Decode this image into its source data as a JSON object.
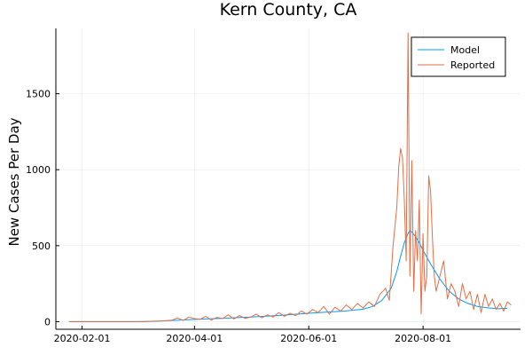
{
  "chart_data": {
    "type": "line",
    "title": "Kern County, CA",
    "xlabel": "",
    "ylabel": "New Cases Per Day",
    "x_axis_type": "date",
    "xlim": [
      "2020-01-18",
      "2020-09-22"
    ],
    "ylim": [
      -50,
      1930
    ],
    "xticks": [
      "2020-02-01",
      "2020-04-01",
      "2020-06-01",
      "2020-08-01"
    ],
    "yticks": [
      0,
      500,
      1000,
      1500
    ],
    "grid": true,
    "legend_position": "top-right",
    "colors": {
      "Model": "#009AFA",
      "Reported": "#E26F46"
    },
    "series": [
      {
        "name": "Model",
        "x": [
          "2020-01-25",
          "2020-03-01",
          "2020-03-10",
          "2020-03-20",
          "2020-04-01",
          "2020-04-15",
          "2020-05-01",
          "2020-05-15",
          "2020-06-01",
          "2020-06-10",
          "2020-06-20",
          "2020-06-30",
          "2020-07-05",
          "2020-07-10",
          "2020-07-15",
          "2020-07-18",
          "2020-07-20",
          "2020-07-22",
          "2020-07-24",
          "2020-07-25",
          "2020-07-26",
          "2020-07-28",
          "2020-07-30",
          "2020-08-01",
          "2020-08-05",
          "2020-08-10",
          "2020-08-15",
          "2020-08-20",
          "2020-08-25",
          "2020-08-30",
          "2020-09-05",
          "2020-09-10",
          "2020-09-15"
        ],
        "y": [
          0,
          0,
          2,
          8,
          15,
          22,
          30,
          40,
          55,
          62,
          70,
          82,
          100,
          140,
          220,
          330,
          430,
          520,
          580,
          600,
          590,
          560,
          520,
          470,
          380,
          280,
          200,
          150,
          120,
          100,
          90,
          85,
          88
        ]
      },
      {
        "name": "Reported",
        "x": [
          "2020-01-25",
          "2020-03-05",
          "2020-03-10",
          "2020-03-15",
          "2020-03-20",
          "2020-03-23",
          "2020-03-26",
          "2020-03-29",
          "2020-04-01",
          "2020-04-04",
          "2020-04-07",
          "2020-04-10",
          "2020-04-13",
          "2020-04-16",
          "2020-04-19",
          "2020-04-22",
          "2020-04-25",
          "2020-04-28",
          "2020-05-01",
          "2020-05-04",
          "2020-05-07",
          "2020-05-10",
          "2020-05-13",
          "2020-05-16",
          "2020-05-19",
          "2020-05-22",
          "2020-05-25",
          "2020-05-28",
          "2020-05-31",
          "2020-06-03",
          "2020-06-06",
          "2020-06-09",
          "2020-06-12",
          "2020-06-15",
          "2020-06-18",
          "2020-06-21",
          "2020-06-24",
          "2020-06-27",
          "2020-06-30",
          "2020-07-03",
          "2020-07-06",
          "2020-07-09",
          "2020-07-12",
          "2020-07-14",
          "2020-07-16",
          "2020-07-18",
          "2020-07-19",
          "2020-07-20",
          "2020-07-21",
          "2020-07-22",
          "2020-07-23",
          "2020-07-24",
          "2020-07-25",
          "2020-07-26",
          "2020-07-27",
          "2020-07-28",
          "2020-07-29",
          "2020-07-30",
          "2020-07-31",
          "2020-08-01",
          "2020-08-02",
          "2020-08-03",
          "2020-08-04",
          "2020-08-05",
          "2020-08-06",
          "2020-08-07",
          "2020-08-08",
          "2020-08-09",
          "2020-08-10",
          "2020-08-12",
          "2020-08-14",
          "2020-08-16",
          "2020-08-18",
          "2020-08-20",
          "2020-08-22",
          "2020-08-24",
          "2020-08-26",
          "2020-08-28",
          "2020-08-30",
          "2020-09-01",
          "2020-09-03",
          "2020-09-05",
          "2020-09-07",
          "2020-09-09",
          "2020-09-11",
          "2020-09-13",
          "2020-09-15",
          "2020-09-17"
        ],
        "y": [
          0,
          0,
          3,
          5,
          10,
          25,
          8,
          30,
          20,
          15,
          35,
          10,
          28,
          20,
          45,
          18,
          40,
          22,
          30,
          50,
          25,
          45,
          30,
          60,
          35,
          55,
          40,
          70,
          50,
          80,
          60,
          100,
          50,
          95,
          70,
          110,
          80,
          120,
          90,
          130,
          100,
          180,
          220,
          140,
          500,
          750,
          1020,
          1140,
          1080,
          800,
          400,
          1900,
          300,
          1060,
          200,
          600,
          400,
          800,
          50,
          580,
          200,
          300,
          960,
          860,
          550,
          300,
          200,
          250,
          300,
          400,
          150,
          250,
          200,
          100,
          250,
          150,
          200,
          80,
          180,
          60,
          180,
          100,
          150,
          80,
          120,
          70,
          130,
          110
        ]
      }
    ]
  }
}
